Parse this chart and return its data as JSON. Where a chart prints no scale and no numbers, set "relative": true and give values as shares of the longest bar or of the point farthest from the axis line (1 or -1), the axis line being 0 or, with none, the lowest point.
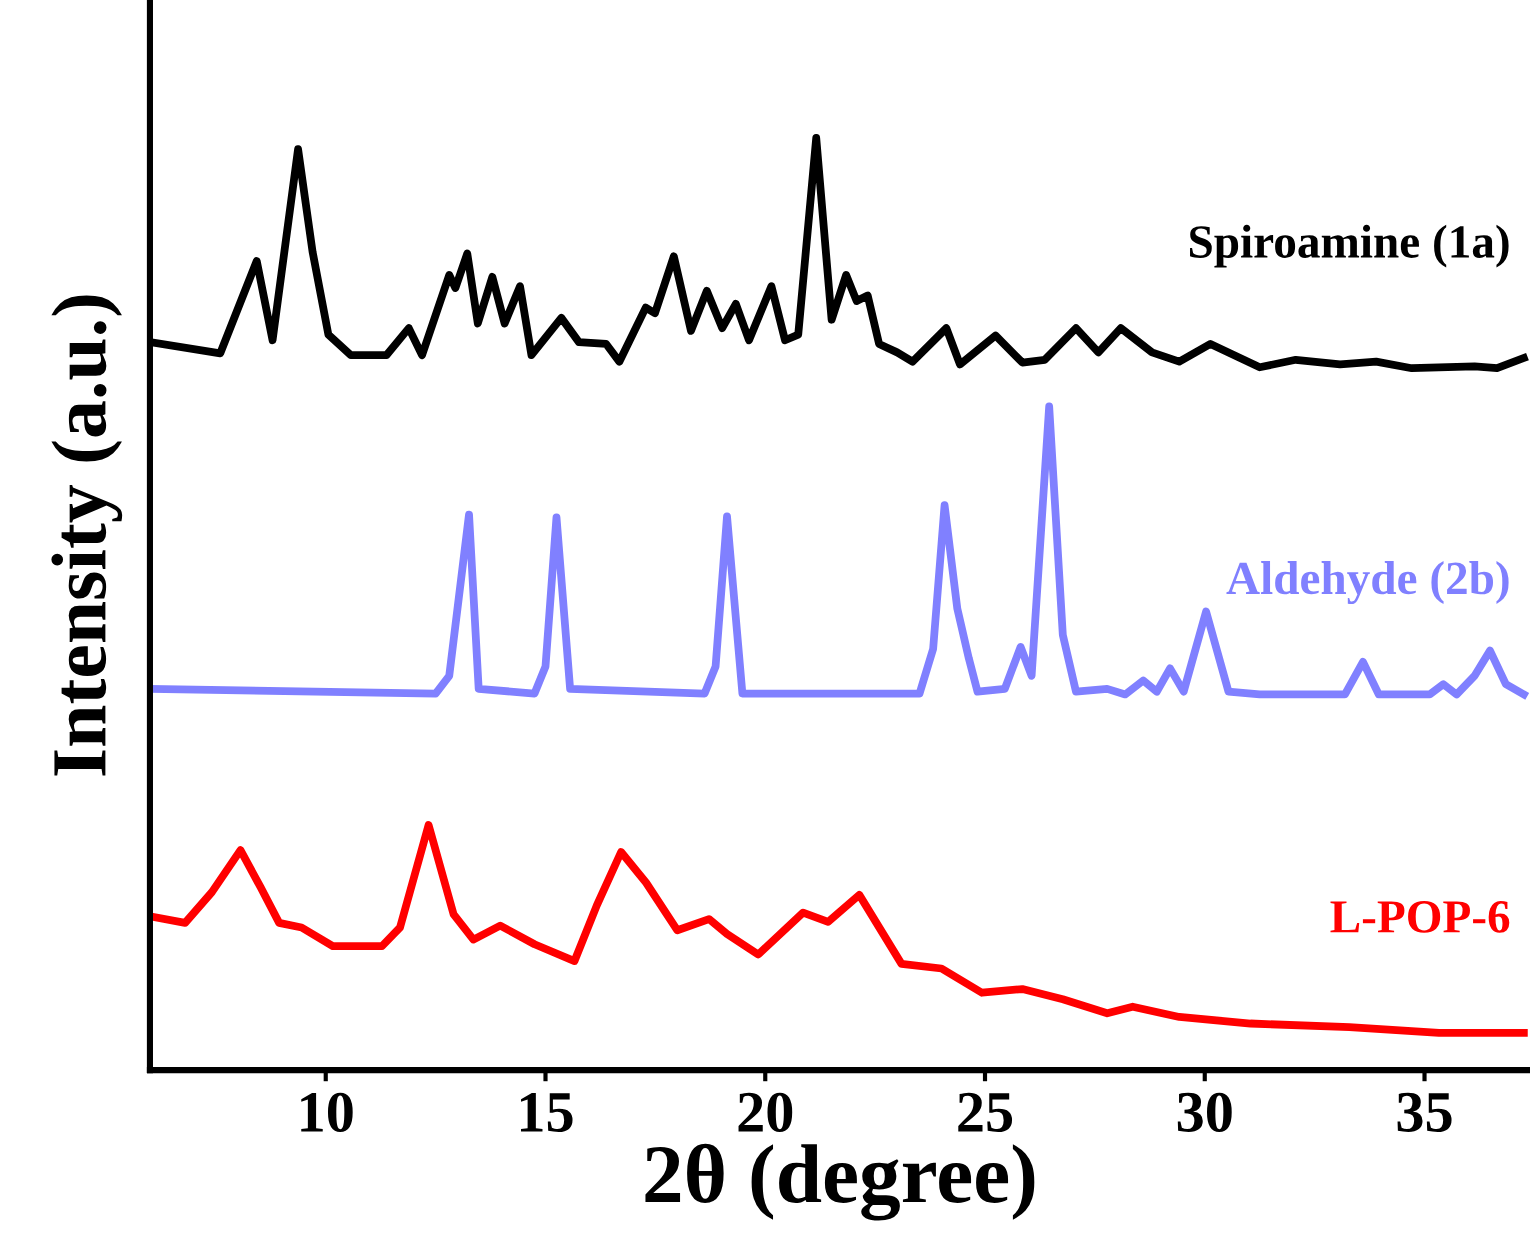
{
  "chart_data": {
    "type": "line",
    "relative": true,
    "xlabel": "2θ (degree)",
    "ylabel": "Intensity (a.u.)",
    "xlim": [
      6,
      37.4
    ],
    "xticks": [
      10,
      15,
      20,
      25,
      30,
      35
    ],
    "tick_labels": "x",
    "grid": false,
    "legend": false,
    "marker": "none",
    "line_style": "solid",
    "series": [
      {
        "name": "Spiroamine (1a)",
        "color": "#000000",
        "x": [
          6.0,
          7.6,
          8.43,
          8.79,
          9.37,
          9.7,
          10.06,
          10.57,
          11.38,
          11.89,
          12.19,
          12.81,
          12.95,
          13.22,
          13.46,
          13.79,
          14.07,
          14.42,
          14.68,
          15.36,
          15.76,
          16.38,
          16.68,
          17.28,
          17.49,
          17.92,
          18.31,
          18.67,
          19.02,
          19.33,
          19.63,
          20.14,
          20.45,
          20.75,
          21.16,
          21.51,
          21.84,
          22.08,
          22.33,
          22.59,
          23.0,
          23.35,
          24.12,
          24.43,
          25.24,
          25.85,
          26.36,
          27.07,
          27.58,
          28.09,
          28.8,
          29.42,
          30.13,
          31.25,
          32.07,
          33.08,
          33.9,
          34.71,
          36.14,
          36.65,
          37.26
        ],
        "values": [
          0.781,
          0.769,
          0.868,
          0.783,
          0.988,
          0.878,
          0.789,
          0.767,
          0.767,
          0.796,
          0.767,
          0.853,
          0.839,
          0.876,
          0.801,
          0.851,
          0.801,
          0.841,
          0.767,
          0.807,
          0.781,
          0.779,
          0.76,
          0.818,
          0.812,
          0.873,
          0.793,
          0.836,
          0.796,
          0.822,
          0.783,
          0.841,
          0.783,
          0.789,
          1.0,
          0.805,
          0.853,
          0.825,
          0.831,
          0.779,
          0.77,
          0.76,
          0.796,
          0.757,
          0.788,
          0.759,
          0.762,
          0.796,
          0.77,
          0.796,
          0.77,
          0.76,
          0.779,
          0.754,
          0.762,
          0.757,
          0.76,
          0.753,
          0.755,
          0.753,
          0.764
        ]
      },
      {
        "name": "Aldehyde (2b)",
        "color": "#8080ff",
        "x": [
          6.0,
          12.5,
          12.81,
          13.26,
          13.48,
          14.75,
          15.0,
          15.25,
          15.56,
          18.62,
          18.87,
          19.13,
          19.48,
          23.51,
          23.82,
          24.08,
          24.37,
          24.63,
          24.83,
          25.45,
          25.81,
          26.06,
          26.46,
          26.77,
          27.07,
          27.78,
          28.19,
          28.6,
          28.91,
          29.21,
          29.52,
          30.03,
          30.54,
          31.25,
          33.19,
          33.6,
          33.96,
          35.12,
          35.43,
          35.73,
          36.14,
          36.49,
          36.85,
          37.26
        ],
        "values": [
          0.409,
          0.404,
          0.423,
          0.596,
          0.409,
          0.404,
          0.433,
          0.593,
          0.409,
          0.404,
          0.433,
          0.594,
          0.404,
          0.404,
          0.452,
          0.606,
          0.495,
          0.442,
          0.406,
          0.409,
          0.454,
          0.423,
          0.712,
          0.467,
          0.406,
          0.409,
          0.403,
          0.418,
          0.406,
          0.431,
          0.406,
          0.492,
          0.406,
          0.403,
          0.403,
          0.438,
          0.403,
          0.403,
          0.414,
          0.403,
          0.423,
          0.45,
          0.414,
          0.403
        ]
      },
      {
        "name": "L-POP-6",
        "color": "#ff0000",
        "x": [
          6.0,
          6.8,
          7.41,
          8.06,
          8.52,
          8.94,
          9.45,
          10.16,
          11.28,
          11.69,
          12.34,
          12.91,
          13.36,
          13.97,
          14.75,
          15.66,
          16.17,
          16.72,
          17.29,
          18.0,
          18.72,
          19.13,
          19.84,
          20.86,
          21.43,
          22.14,
          23.1,
          24.01,
          24.93,
          25.85,
          26.77,
          27.78,
          28.36,
          29.42,
          31.04,
          33.29,
          35.33,
          37.26
        ],
        "values": [
          0.165,
          0.158,
          0.191,
          0.236,
          0.196,
          0.158,
          0.153,
          0.133,
          0.133,
          0.153,
          0.263,
          0.167,
          0.14,
          0.155,
          0.135,
          0.117,
          0.177,
          0.234,
          0.201,
          0.15,
          0.162,
          0.146,
          0.124,
          0.169,
          0.159,
          0.188,
          0.114,
          0.109,
          0.083,
          0.087,
          0.076,
          0.061,
          0.068,
          0.057,
          0.05,
          0.046,
          0.04,
          0.04
        ]
      }
    ]
  }
}
